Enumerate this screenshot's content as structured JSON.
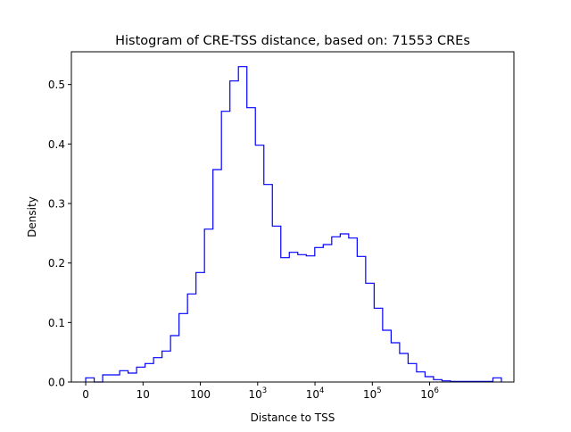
{
  "chart_data": {
    "type": "histogram",
    "title": "Histogram of CRE-TSS distance, based on: 71553 CREs",
    "xlabel": "Distance to TSS",
    "ylabel": "Density",
    "x_scale": "log10(distance+1)",
    "xlim": [
      -0.25,
      7.47
    ],
    "ylim": [
      0,
      0.555
    ],
    "x_ticks": [
      {
        "value": 0,
        "base": "0",
        "exp": ""
      },
      {
        "value": 1,
        "base": "10",
        "exp": ""
      },
      {
        "value": 2,
        "base": "100",
        "exp": ""
      },
      {
        "value": 3,
        "base": "10",
        "exp": "3"
      },
      {
        "value": 4,
        "base": "10",
        "exp": "4"
      },
      {
        "value": 5,
        "base": "10",
        "exp": "5"
      },
      {
        "value": 6,
        "base": "10",
        "exp": "6"
      }
    ],
    "y_ticks": [
      {
        "value": 0.0,
        "label": "0.0"
      },
      {
        "value": 0.1,
        "label": "0.1"
      },
      {
        "value": 0.2,
        "label": "0.2"
      },
      {
        "value": 0.3,
        "label": "0.3"
      },
      {
        "value": 0.4,
        "label": "0.4"
      },
      {
        "value": 0.5,
        "label": "0.5"
      }
    ],
    "grid": false,
    "line_color": "#0000ff",
    "bin_edges": [
      0.0,
      0.148,
      0.296,
      0.444,
      0.592,
      0.74,
      0.888,
      1.036,
      1.184,
      1.332,
      1.48,
      1.628,
      1.776,
      1.924,
      2.072,
      2.22,
      2.368,
      2.516,
      2.664,
      2.812,
      2.96,
      3.108,
      3.256,
      3.404,
      3.552,
      3.7,
      3.848,
      3.996,
      4.144,
      4.292,
      4.44,
      4.588,
      4.736,
      4.884,
      5.032,
      5.18,
      5.328,
      5.476,
      5.624,
      5.772,
      5.92,
      6.068,
      6.216,
      6.364,
      6.512,
      6.66,
      6.808,
      6.956,
      7.104,
      7.252
    ],
    "densities": [
      0.007,
      0.0,
      0.012,
      0.012,
      0.019,
      0.015,
      0.025,
      0.031,
      0.041,
      0.052,
      0.078,
      0.115,
      0.148,
      0.184,
      0.257,
      0.357,
      0.455,
      0.506,
      0.53,
      0.461,
      0.398,
      0.332,
      0.262,
      0.209,
      0.218,
      0.214,
      0.212,
      0.226,
      0.231,
      0.244,
      0.249,
      0.242,
      0.211,
      0.166,
      0.124,
      0.087,
      0.066,
      0.048,
      0.031,
      0.017,
      0.009,
      0.004,
      0.002,
      0.001,
      0.001,
      0.001,
      0.001,
      0.001,
      0.007
    ]
  }
}
